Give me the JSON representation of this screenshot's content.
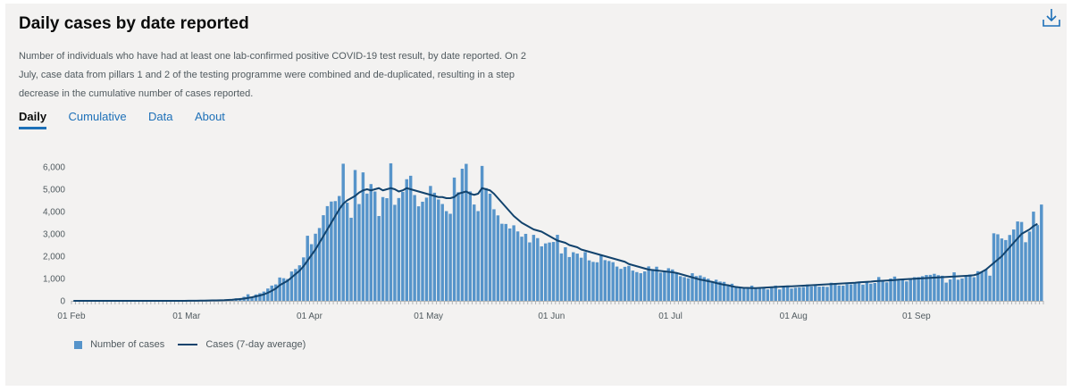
{
  "header": {
    "title": "Daily cases by date reported",
    "download_icon": "download-icon",
    "description": "Number of individuals who have had at least one lab-confirmed positive COVID-19 test result, by date reported. On 2 July, case data from pillars 1 and 2 of the testing programme were combined and de-duplicated, resulting in a step decrease in the cumulative number of cases reported."
  },
  "tabs": [
    {
      "label": "Daily",
      "active": true
    },
    {
      "label": "Cumulative",
      "active": false
    },
    {
      "label": "Data",
      "active": false
    },
    {
      "label": "About",
      "active": false
    }
  ],
  "colors": {
    "bar": "#5694ca",
    "line": "#12436d",
    "axis": "#b1b4b6",
    "active_tab": "#1d70b8"
  },
  "chart_data": {
    "type": "bar",
    "title": "Daily cases by date reported",
    "xlabel": "",
    "ylabel": "",
    "ylim": [
      0,
      6200
    ],
    "y_ticks": [
      0,
      1000,
      2000,
      3000,
      4000,
      5000,
      6000
    ],
    "y_tick_labels": [
      "0",
      "1,000",
      "2,000",
      "3,000",
      "4,000",
      "5,000",
      "6,000"
    ],
    "x_tick_labels": [
      "01 Feb",
      "01 Mar",
      "01 Apr",
      "01 May",
      "01 Jun",
      "01 Jul",
      "01 Aug",
      "01 Sep"
    ],
    "x_tick_day_index": [
      0,
      29,
      60,
      90,
      121,
      151,
      182,
      213
    ],
    "start_date": "2020-01-31",
    "series": [
      {
        "name": "Number of cases",
        "type": "bar",
        "values": [
          2,
          0,
          0,
          0,
          0,
          0,
          0,
          0,
          0,
          0,
          1,
          0,
          0,
          0,
          0,
          0,
          0,
          0,
          0,
          0,
          0,
          0,
          0,
          0,
          0,
          4,
          2,
          4,
          7,
          11,
          13,
          8,
          15,
          19,
          28,
          32,
          23,
          40,
          45,
          68,
          71,
          114,
          123,
          182,
          294,
          156,
          286,
          342,
          416,
          552,
          684,
          736,
          1046,
          1014,
          979,
          1314,
          1426,
          1592,
          1947,
          2917,
          2539,
          3008,
          3263,
          3837,
          4244,
          4450,
          4469,
          4698,
          6144,
          4398,
          3723,
          5862,
          4336,
          5756,
          4805,
          5232,
          4900,
          3800,
          4649,
          4600,
          6162,
          4302,
          4607,
          4879,
          5450,
          5605,
          4740,
          4236,
          4441,
          4624,
          5148,
          4845,
          4542,
          4339,
          4020,
          3901,
          5524,
          4865,
          5920,
          6138,
          4902,
          4316,
          4020,
          6045,
          5052,
          4801,
          4103,
          3829,
          3454,
          3445,
          3242,
          3384,
          3110,
          2875,
          3002,
          2619,
          2957,
          2811,
          2442,
          2573,
          2614,
          2638,
          2959,
          2124,
          2401,
          1963,
          2178,
          2117,
          1933,
          2184,
          1813,
          1745,
          1728,
          2066,
          1825,
          1785,
          1732,
          1536,
          1432,
          1524,
          1570,
          1356,
          1289,
          1238,
          1318,
          1545,
          1420,
          1530,
          1265,
          1299,
          1461,
          1406,
          1231,
          1104,
          1062,
          1012,
          1237,
          1110,
          1138,
          1061,
          992,
          831,
          946,
          865,
          849,
          686,
          766,
          660,
          597,
          612,
          582,
          681,
          540,
          577,
          608,
          513,
          602,
          683,
          512,
          650,
          683,
          552,
          588,
          602,
          619,
          731,
          646,
          733,
          635,
          644,
          626,
          811,
          764,
          688,
          680,
          747,
          740,
          821,
          859,
          725,
          880,
          768,
          800,
          1066,
          901,
          829,
          1001,
          1088,
          962,
          951,
          872,
          1011,
          1059,
          1062,
          1103,
          1157,
          1164,
          1211,
          1150,
          1125,
          817,
          959,
          1278,
          947,
          1002,
          1093,
          1182,
          1060,
          1328,
          1311,
          1413,
          1127,
          3026,
          2982,
          2794,
          2723,
          2951,
          3197,
          3557,
          3534,
          2626,
          3105,
          3997,
          3395,
          4315
        ]
      },
      {
        "name": "Cases (7-day average)",
        "type": "line",
        "values": [
          0,
          0,
          0,
          0,
          0,
          0,
          0,
          0,
          0,
          0,
          0,
          0,
          0,
          0,
          0,
          0,
          0,
          0,
          0,
          0,
          0,
          0,
          0,
          0,
          0,
          1,
          1,
          1,
          2,
          3,
          4,
          5,
          8,
          10,
          14,
          18,
          20,
          25,
          30,
          40,
          50,
          65,
          80,
          100,
          130,
          160,
          200,
          240,
          290,
          360,
          450,
          550,
          700,
          800,
          900,
          1050,
          1200,
          1350,
          1550,
          1800,
          2050,
          2300,
          2600,
          2900,
          3200,
          3500,
          3800,
          4100,
          4350,
          4500,
          4600,
          4700,
          4850,
          4950,
          5000,
          4950,
          5000,
          5050,
          4950,
          5000,
          5050,
          5000,
          4900,
          4950,
          5050,
          5000,
          4950,
          4900,
          4850,
          4800,
          4750,
          4700,
          4650,
          4650,
          4600,
          4600,
          4650,
          4800,
          4850,
          4900,
          4800,
          4750,
          4800,
          5050,
          5000,
          4950,
          4800,
          4600,
          4400,
          4200,
          4000,
          3800,
          3650,
          3500,
          3400,
          3300,
          3200,
          3150,
          3100,
          3000,
          2900,
          2800,
          2700,
          2650,
          2600,
          2500,
          2450,
          2400,
          2300,
          2250,
          2200,
          2150,
          2100,
          2050,
          2000,
          1950,
          1900,
          1850,
          1800,
          1750,
          1650,
          1600,
          1550,
          1500,
          1450,
          1400,
          1380,
          1360,
          1340,
          1320,
          1300,
          1280,
          1250,
          1200,
          1150,
          1100,
          1050,
          1000,
          950,
          920,
          880,
          850,
          800,
          760,
          720,
          700,
          650,
          620,
          600,
          580,
          580,
          570,
          570,
          580,
          590,
          600,
          610,
          620,
          630,
          640,
          650,
          650,
          660,
          670,
          680,
          690,
          700,
          710,
          720,
          730,
          740,
          750,
          760,
          770,
          780,
          790,
          800,
          810,
          830,
          840,
          850,
          860,
          880,
          890,
          900,
          910,
          920,
          930,
          950,
          960,
          970,
          980,
          990,
          1000,
          1010,
          1020,
          1030,
          1040,
          1050,
          1060,
          1070,
          1080,
          1090,
          1100,
          1110,
          1120,
          1130,
          1150,
          1200,
          1300,
          1400,
          1550,
          1700,
          1850,
          2000,
          2200,
          2400,
          2600,
          2800,
          3000,
          3100,
          3200,
          3350,
          3450
        ]
      }
    ],
    "legend": [
      {
        "label": "Number of cases",
        "kind": "bar"
      },
      {
        "label": "Cases (7-day average)",
        "kind": "line"
      }
    ],
    "legend_position": "bottom-left",
    "grid": false
  }
}
